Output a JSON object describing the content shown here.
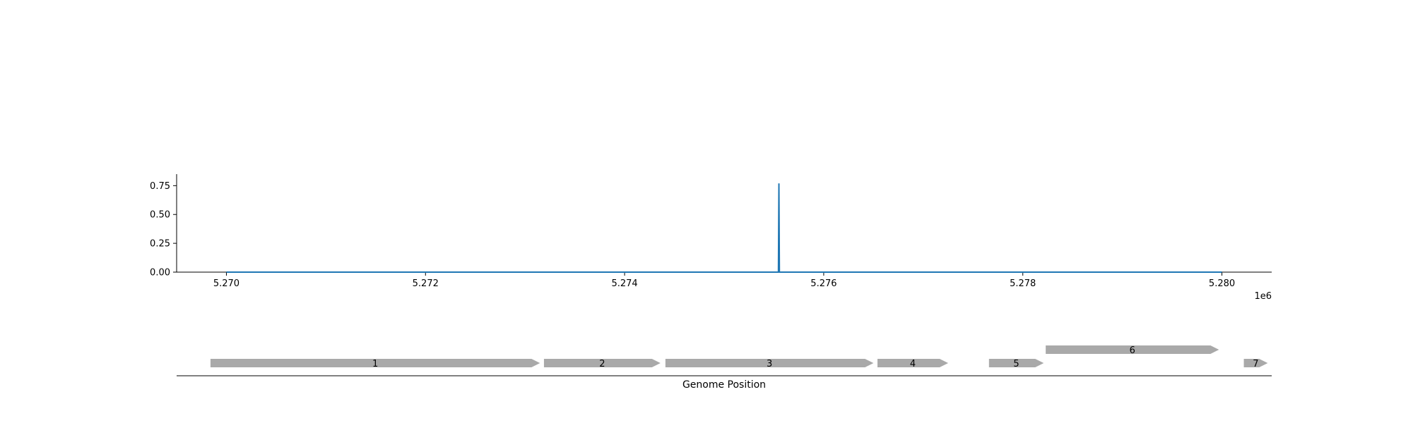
{
  "chart_data": [
    {
      "type": "line",
      "x_offset_label": "1e6",
      "xlim": [
        5269500,
        5280500
      ],
      "ylim": [
        0,
        0.85
      ],
      "x_ticks": [
        {
          "value": 5270000,
          "label": "5.270"
        },
        {
          "value": 5272000,
          "label": "5.272"
        },
        {
          "value": 5274000,
          "label": "5.274"
        },
        {
          "value": 5276000,
          "label": "5.276"
        },
        {
          "value": 5278000,
          "label": "5.278"
        },
        {
          "value": 5280000,
          "label": "5.280"
        }
      ],
      "y_ticks": [
        {
          "value": 0.0,
          "label": "0.00"
        },
        {
          "value": 0.25,
          "label": "0.25"
        },
        {
          "value": 0.5,
          "label": "0.50"
        },
        {
          "value": 0.75,
          "label": "0.75"
        }
      ],
      "grid": false,
      "series": [
        {
          "color": "#1f77b4",
          "points": [
            {
              "x": 5270000,
              "y": 0.0
            },
            {
              "x": 5275545,
              "y": 0.0
            },
            {
              "x": 5275550,
              "y": 0.77
            },
            {
              "x": 5275555,
              "y": 0.0
            },
            {
              "x": 5280000,
              "y": 0.0
            }
          ]
        }
      ]
    },
    {
      "type": "gene-track",
      "xlabel": "Genome Position",
      "xlim": [
        5269500,
        5280500
      ],
      "color": "#a9a9a9",
      "genes": [
        {
          "label": "1",
          "start": 5269840,
          "end": 5273150,
          "row": 0
        },
        {
          "label": "2",
          "start": 5273190,
          "end": 5274360,
          "row": 0
        },
        {
          "label": "3",
          "start": 5274410,
          "end": 5276500,
          "row": 0
        },
        {
          "label": "4",
          "start": 5276540,
          "end": 5277250,
          "row": 0
        },
        {
          "label": "5",
          "start": 5277660,
          "end": 5278210,
          "row": 0
        },
        {
          "label": "6",
          "start": 5278230,
          "end": 5279970,
          "row": 1
        },
        {
          "label": "7",
          "start": 5280220,
          "end": 5280460,
          "row": 0
        }
      ]
    }
  ]
}
